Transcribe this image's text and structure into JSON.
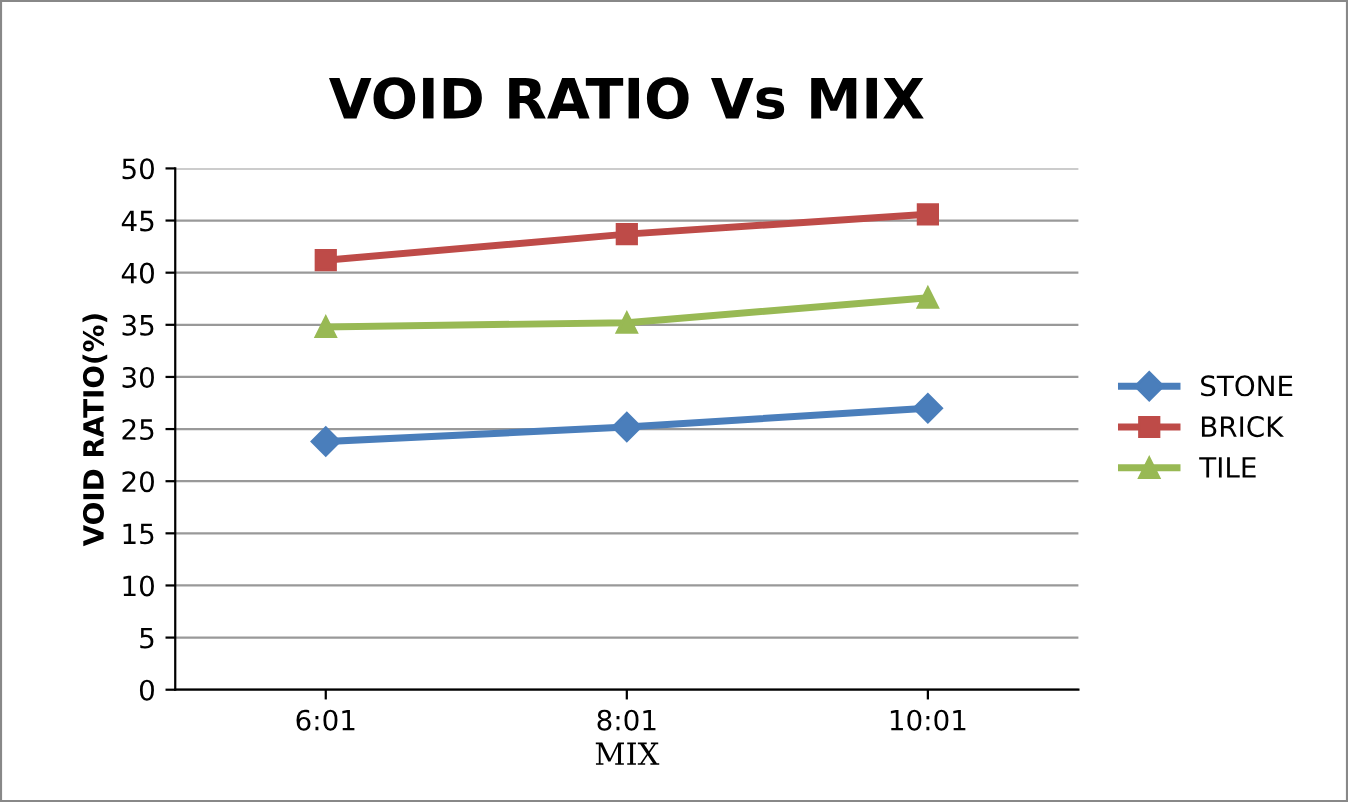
{
  "chart_data": {
    "type": "line",
    "title": "VOID RATIO Vs MIX",
    "xlabel": "MIX",
    "ylabel": "VOID RATIO(%)",
    "categories": [
      "6:01",
      "8:01",
      "10:01"
    ],
    "series": [
      {
        "name": "STONE",
        "color": "#4a7ebb",
        "values": [
          23.8,
          25.2,
          27.0
        ],
        "marker": "diamond"
      },
      {
        "name": "BRICK",
        "color": "#be4b48",
        "values": [
          41.2,
          43.7,
          45.6
        ],
        "marker": "square"
      },
      {
        "name": "TILE",
        "color": "#98b954",
        "values": [
          34.8,
          35.2,
          37.6
        ],
        "marker": "triangle"
      }
    ],
    "ylim": [
      0,
      50
    ],
    "yticks": [
      0,
      5,
      10,
      15,
      20,
      25,
      30,
      35,
      40,
      45,
      50
    ],
    "grid": "y",
    "legend": "right",
    "line_style": "solid"
  }
}
